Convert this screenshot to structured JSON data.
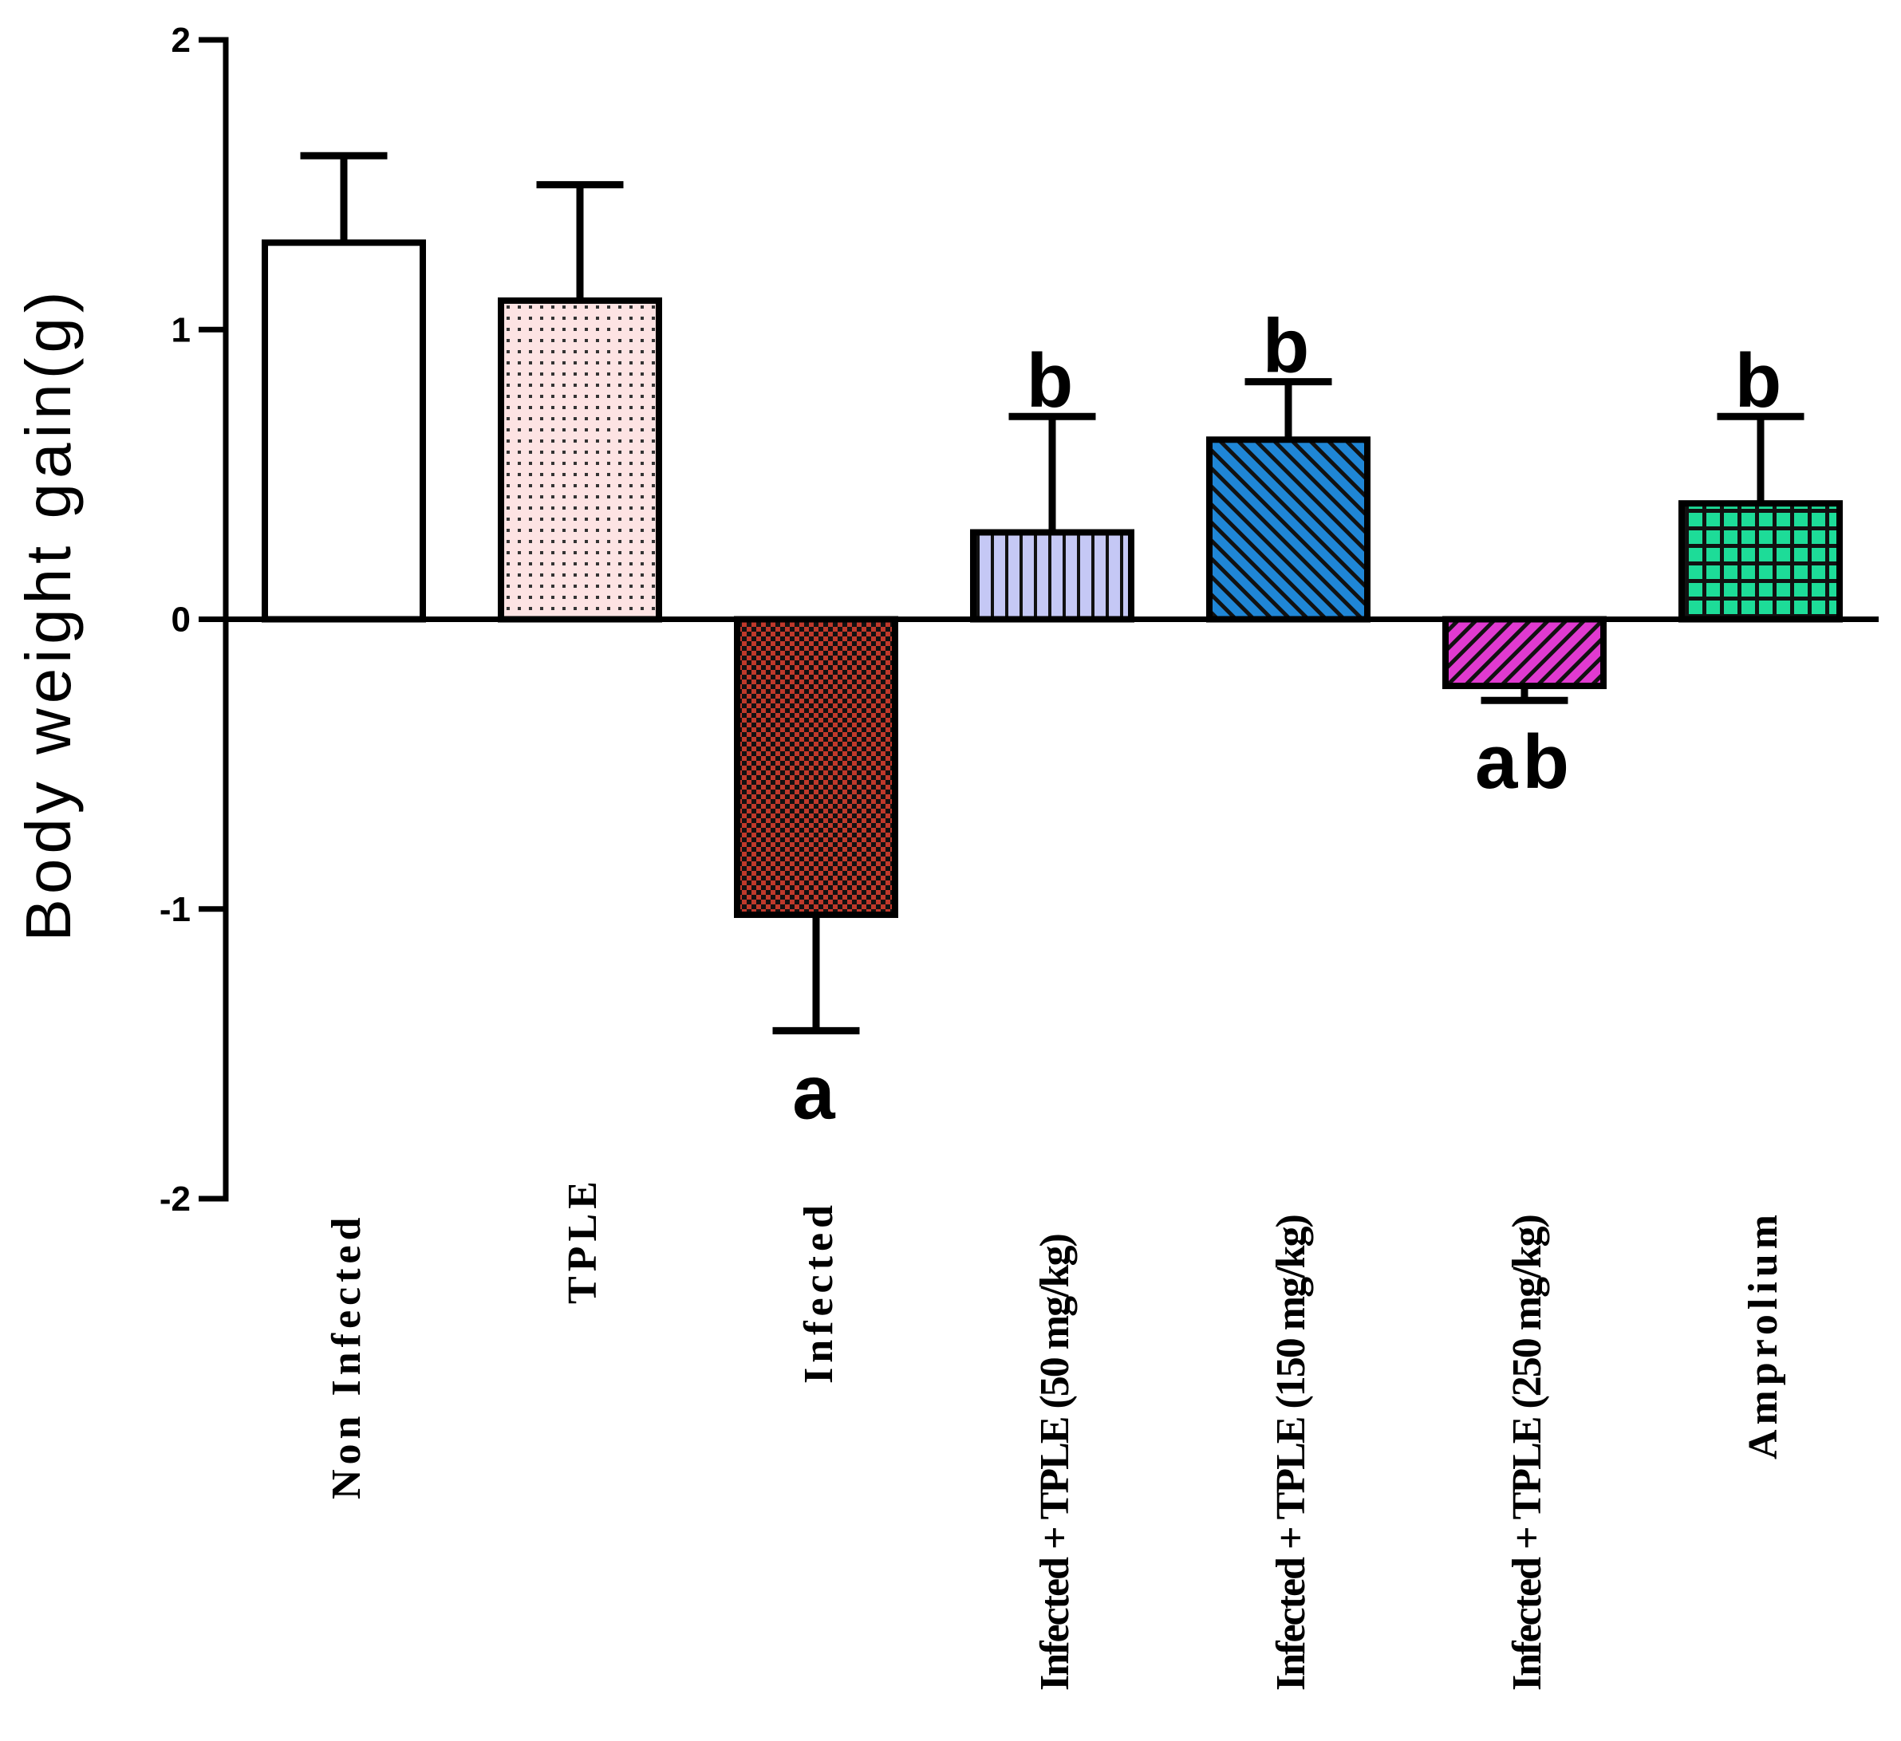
{
  "chart_data": {
    "type": "bar",
    "title": "",
    "xlabel": "",
    "ylabel": "Body weight gain(g)",
    "ylim": [
      -2,
      2
    ],
    "yticks": [
      "2",
      "1",
      "0",
      "-1",
      "-2"
    ],
    "ytick_values": [
      2,
      1,
      0,
      -1,
      -2
    ],
    "categories": [
      "Non Infected",
      "TPLE",
      "Infected",
      "Infected + TPLE (50 mg/kg)",
      "Infected + TPLE (150 mg/kg)",
      "Infected + TPLE (250 mg/kg)",
      "Amprolium"
    ],
    "values": [
      1.3,
      1.1,
      -1.02,
      0.3,
      0.62,
      -0.23,
      0.4
    ],
    "error": [
      0.3,
      0.4,
      0.4,
      0.4,
      0.2,
      0.05,
      0.3
    ],
    "significance": [
      "",
      "",
      "a",
      "b",
      "b",
      "ab",
      "b"
    ],
    "fills": [
      "#ffffff",
      "#fde3e3",
      "#c0392b",
      "#c5c8f5",
      "#1f86d6",
      "#e03ad0",
      "#1ddc98"
    ],
    "patterns": [
      "none",
      "dots",
      "checker",
      "vertical",
      "diagonal",
      "diagonal",
      "grid"
    ]
  }
}
